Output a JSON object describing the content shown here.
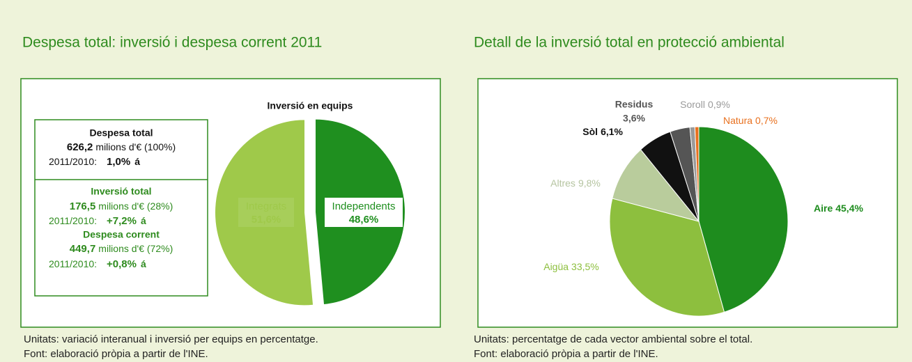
{
  "chart_data": [
    {
      "type": "pie",
      "title": "Despesa total: inversió i despesa corrent 2011",
      "subtitle": "Inversió en equips",
      "categories": [
        "Independents",
        "Integrats"
      ],
      "values": [
        48.6,
        51.6
      ],
      "value_labels": [
        "48,6%",
        "51,6%"
      ],
      "colors": [
        "#1f8f1f",
        "#9fc94a"
      ]
    },
    {
      "type": "pie",
      "title": "Detall de la inversió total en protecció ambiental",
      "categories": [
        "Aire",
        "Aigüa",
        "Altres",
        "Sòl",
        "Residus",
        "Soroll",
        "Natura"
      ],
      "values": [
        45.4,
        33.5,
        9.8,
        6.1,
        3.6,
        0.9,
        0.7
      ],
      "value_labels": [
        "45,4%",
        "33,5%",
        "9,8%",
        "6,1%",
        "3,6%",
        "0,9%",
        "0,7%"
      ],
      "colors": [
        "#1e8c1e",
        "#8dbf3e",
        "#b9cc9c",
        "#111111",
        "#555555",
        "#9a9a9a",
        "#e8701e"
      ]
    }
  ],
  "summary": [
    {
      "title": "Despesa total",
      "amount": "626,2",
      "unit": "milions d'€ (100%)",
      "period": "2011/2010:",
      "change": "1,0%",
      "arrow": "á"
    },
    {
      "title": "Inversió total",
      "amount": "176,5",
      "unit": "milions d'€ (28%)",
      "period": "2011/2010:",
      "change": "+7,2%",
      "arrow": "á"
    },
    {
      "title": "Despesa corrent",
      "amount": "449,7",
      "unit": "milions d'€ (72%)",
      "period": "2011/2010:",
      "change": "+0,8%",
      "arrow": "á"
    }
  ],
  "notes_left": [
    "Unitats: variació interanual i inversió per equips en percentatge.",
    "Font: elaboració pròpia a partir de l'INE."
  ],
  "notes_right": [
    "Unitats: percentatge de cada vector ambiental sobre el total.",
    "Font: elaboració pròpia a partir de l'INE."
  ]
}
